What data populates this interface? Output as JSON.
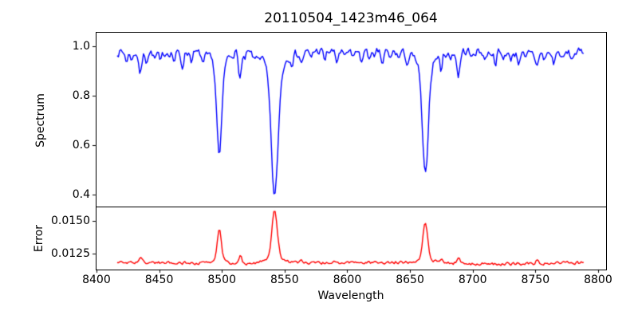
{
  "chart_data": {
    "type": "line",
    "title": "20110504_1423m46_064",
    "xlabel": "Wavelength",
    "grid": false,
    "legend": "none",
    "xlim": [
      8399.4,
      8806.4
    ],
    "x_ticks": [
      8400,
      8450,
      8500,
      8550,
      8600,
      8650,
      8700,
      8750,
      8800
    ],
    "x_tick_labels": [
      "8400",
      "8450",
      "8500",
      "8550",
      "8600",
      "8650",
      "8700",
      "8750",
      "8800"
    ],
    "noise_seed": 7,
    "panels": [
      {
        "name": "spectrum",
        "ylabel": "Spectrum",
        "ylim": [
          0.352,
          1.057
        ],
        "y_ticks": [
          1.0,
          0.8,
          0.6,
          0.4
        ],
        "y_tick_labels": [
          "1.0",
          "0.8",
          "0.6",
          "0.4"
        ],
        "series": {
          "name": "flux",
          "color": "#0000ff",
          "x_start": 8416.5,
          "x_end": 8788.5,
          "x_step": 1.0,
          "continuum": 0.978,
          "noise_amp": 0.02,
          "strong_line_minima": {
            "8498": 0.55,
            "8542": 0.385,
            "8662": 0.47
          },
          "absorption_lines": [
            [
              8498.0,
              0.428,
              1.9,
              3.8,
              0.3
            ],
            [
              8542.1,
              0.593,
              2.6,
              5.2,
              0.3
            ],
            [
              8662.2,
              0.508,
              2.2,
              4.4,
              0.3
            ],
            [
              8424.2,
              0.035,
              1.0
            ],
            [
              8428.5,
              0.03,
              0.9
            ],
            [
              8435.0,
              0.085,
              1.2
            ],
            [
              8439.8,
              0.03,
              0.9
            ],
            [
              8446.5,
              0.028,
              0.9
            ],
            [
              8451.0,
              0.04,
              1.0
            ],
            [
              8462.0,
              0.035,
              1.0
            ],
            [
              8468.4,
              0.055,
              1.1
            ],
            [
              8476.0,
              0.03,
              0.9
            ],
            [
              8485.2,
              0.045,
              1.0
            ],
            [
              8514.5,
              0.098,
              1.2
            ],
            [
              8518.0,
              0.03,
              0.9
            ],
            [
              8526.0,
              0.025,
              0.9
            ],
            [
              8556.0,
              0.03,
              0.9
            ],
            [
              8563.5,
              0.045,
              1.0
            ],
            [
              8571.0,
              0.025,
              0.9
            ],
            [
              8582.0,
              0.035,
              1.0
            ],
            [
              8591.5,
              0.045,
              1.0
            ],
            [
              8598.0,
              0.03,
              0.9
            ],
            [
              8604.0,
              0.025,
              0.9
            ],
            [
              8611.0,
              0.04,
              1.0
            ],
            [
              8617.0,
              0.025,
              0.9
            ],
            [
              8621.5,
              0.035,
              1.0
            ],
            [
              8628.0,
              0.05,
              1.1
            ],
            [
              8634.0,
              0.03,
              0.9
            ],
            [
              8641.0,
              0.025,
              0.9
            ],
            [
              8648.0,
              0.04,
              1.0
            ],
            [
              8674.8,
              0.06,
              1.0
            ],
            [
              8682.0,
              0.03,
              0.9
            ],
            [
              8688.6,
              0.095,
              1.3
            ],
            [
              8699.0,
              0.03,
              0.9
            ],
            [
              8710.0,
              0.032,
              1.0
            ],
            [
              8718.0,
              0.04,
              1.0
            ],
            [
              8724.0,
              0.025,
              0.9
            ],
            [
              8730.0,
              0.03,
              0.9
            ],
            [
              8736.5,
              0.035,
              1.0
            ],
            [
              8742.0,
              0.03,
              0.9
            ],
            [
              8751.0,
              0.05,
              1.1
            ],
            [
              8757.0,
              0.03,
              0.9
            ],
            [
              8764.5,
              0.04,
              1.0
            ],
            [
              8772.0,
              0.03,
              0.9
            ],
            [
              8779.0,
              0.03,
              0.9
            ]
          ]
        }
      },
      {
        "name": "error",
        "ylabel": "Error",
        "ylim": [
          0.01126,
          0.01608
        ],
        "y_ticks": [
          0.015,
          0.0125
        ],
        "y_tick_labels": [
          "0.0150",
          "0.0125"
        ],
        "series": {
          "name": "error",
          "color": "#ff0000",
          "x_start": 8416.5,
          "x_end": 8788.5,
          "x_step": 1.0,
          "baseline": 0.01175,
          "noise_amp": 0.00014,
          "peak_maxima": {
            "8498": 0.0143,
            "8542": 0.0158,
            "8662": 0.0148
          },
          "emission_peaks": [
            [
              8498.0,
              0.00255,
              1.6,
              3.2,
              0.25
            ],
            [
              8542.1,
              0.0041,
              2.0,
              4.2,
              0.3
            ],
            [
              8662.2,
              0.0031,
              1.8,
              3.8,
              0.25
            ],
            [
              8514.5,
              0.00055,
              1.2
            ],
            [
              8688.6,
              0.00045,
              1.2
            ],
            [
              8435.0,
              0.0004,
              1.1
            ],
            [
              8674.8,
              0.00028,
              1.0
            ],
            [
              8751.0,
              0.00025,
              1.0
            ],
            [
              8563.5,
              0.0002,
              1.0
            ]
          ]
        }
      }
    ]
  }
}
